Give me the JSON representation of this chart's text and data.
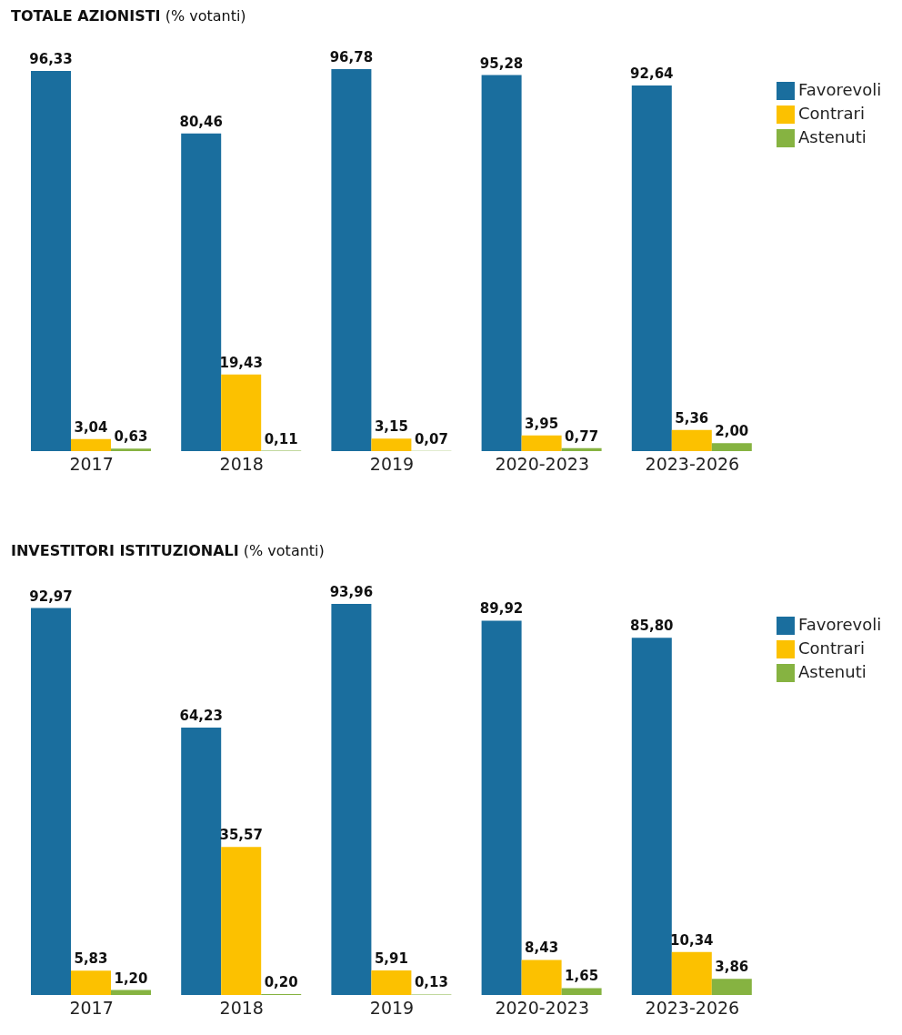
{
  "chart_data": [
    {
      "type": "bar",
      "title": "TOTALE AZIONISTI",
      "subtitle": "(% votanti)",
      "categories": [
        "2017",
        "2018",
        "2019",
        "2020-2023",
        "2023-2026"
      ],
      "legend": "top right",
      "series": [
        {
          "name": "Favorevoli",
          "color": "#1a6e9e",
          "values": [
            96.33,
            80.46,
            96.78,
            95.28,
            92.64
          ],
          "value_labels": [
            "96,33",
            "80,46",
            "96,78",
            "95,28",
            "92,64"
          ]
        },
        {
          "name": "Contrari",
          "color": "#fcc100",
          "values": [
            3.04,
            19.43,
            3.15,
            3.95,
            5.36
          ],
          "value_labels": [
            "3,04",
            "19,43",
            "3,15",
            "3,95",
            "5,36"
          ]
        },
        {
          "name": "Astenuti",
          "color": "#86b341",
          "values": [
            0.63,
            0.11,
            0.07,
            0.77,
            2.0
          ],
          "value_labels": [
            "0,63",
            "0,11",
            "0,07",
            "0,77",
            "2,00"
          ]
        }
      ]
    },
    {
      "type": "bar",
      "title": "INVESTITORI ISTITUZIONALI",
      "subtitle": "(% votanti)",
      "categories": [
        "2017",
        "2018",
        "2019",
        "2020-2023",
        "2023-2026"
      ],
      "legend": "top right",
      "series": [
        {
          "name": "Favorevoli",
          "color": "#1a6e9e",
          "values": [
            92.97,
            64.23,
            93.96,
            89.92,
            85.8
          ],
          "value_labels": [
            "92,97",
            "64,23",
            "93,96",
            "89,92",
            "85,80"
          ]
        },
        {
          "name": "Contrari",
          "color": "#fcc100",
          "values": [
            5.83,
            35.57,
            5.91,
            8.43,
            10.34
          ],
          "value_labels": [
            "5,83",
            "35,57",
            "5,91",
            "8,43",
            "10,34"
          ]
        },
        {
          "name": "Astenuti",
          "color": "#86b341",
          "values": [
            1.2,
            0.2,
            0.13,
            1.65,
            3.86
          ],
          "value_labels": [
            "1,20",
            "0,20",
            "0,13",
            "1,65",
            "3,86"
          ]
        }
      ]
    }
  ]
}
